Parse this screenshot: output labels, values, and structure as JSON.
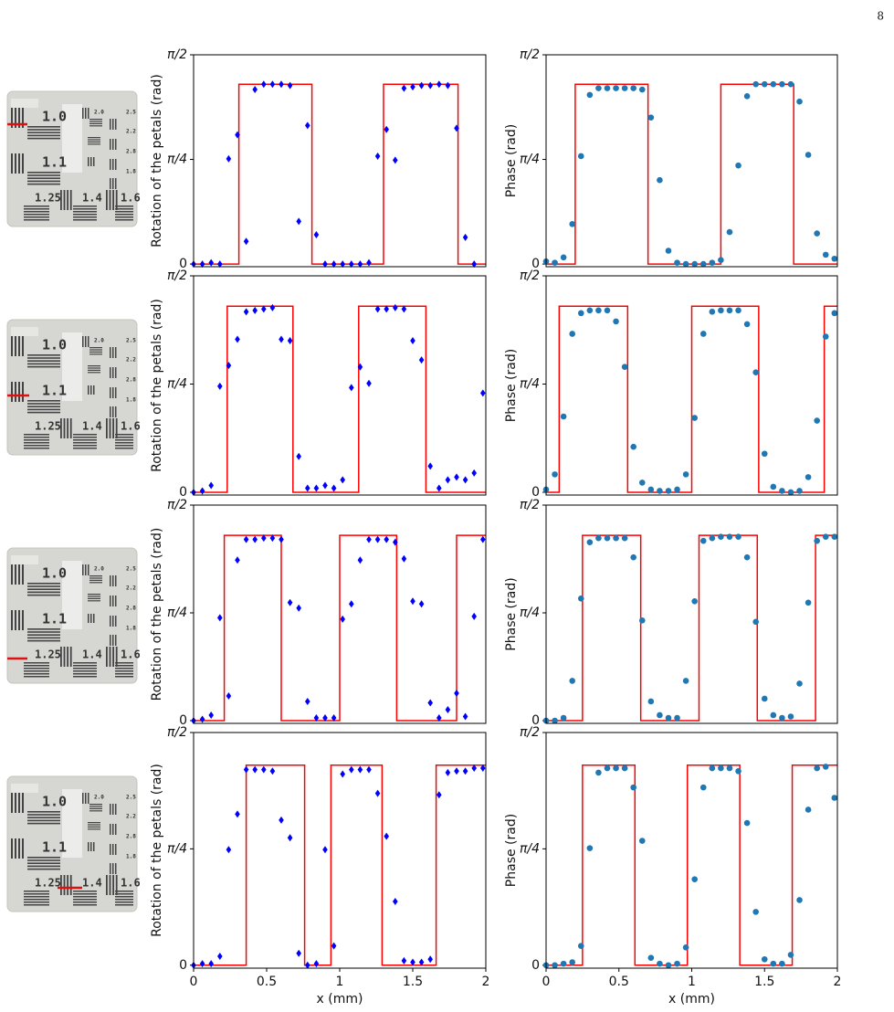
{
  "page_number": "8",
  "target_labels": [
    "1.0",
    "1.1",
    "1.25",
    "1.4",
    "1.6",
    "2.0",
    "2.5",
    "2.2",
    "2.8",
    "1.8"
  ],
  "chart_data": [
    {
      "type": "scatter",
      "ylabel": "Rotation of the petals (rad)",
      "xlim": [
        0,
        2
      ],
      "ylim": [
        -0.02,
        1.5708
      ],
      "yticks": [
        0,
        {
          "value": 0.7854,
          "label": "π/4"
        },
        {
          "value": 1.5708,
          "label": "π/2"
        }
      ],
      "step": {
        "color": "#ff0000",
        "x": [
          0,
          0.31,
          0.31,
          0.81,
          0.81,
          1.3,
          1.3,
          1.81,
          1.81,
          2
        ],
        "values": [
          0,
          0,
          1.35,
          1.35,
          0,
          0,
          1.35,
          1.35,
          0,
          0
        ]
      },
      "points": {
        "color": "#0000ff",
        "marker": "diamond",
        "x": [
          0,
          0.06,
          0.12,
          0.18,
          0.24,
          0.3,
          0.36,
          0.42,
          0.48,
          0.54,
          0.6,
          0.66,
          0.72,
          0.78,
          0.84,
          0.9,
          0.96,
          1.02,
          1.08,
          1.14,
          1.2,
          1.26,
          1.32,
          1.38,
          1.44,
          1.5,
          1.56,
          1.62,
          1.68,
          1.74,
          1.8,
          1.86,
          1.92
        ],
        "values": [
          0,
          0,
          0.01,
          0,
          0.79,
          0.97,
          0.17,
          1.31,
          1.35,
          1.35,
          1.35,
          1.34,
          0.32,
          1.04,
          0.22,
          0,
          0,
          0,
          0,
          0,
          0.01,
          0.81,
          1.01,
          0.78,
          1.32,
          1.33,
          1.34,
          1.34,
          1.35,
          1.34,
          1.02,
          0.2,
          0
        ]
      }
    },
    {
      "type": "scatter",
      "ylabel": "Phase (rad)",
      "xlim": [
        0,
        2
      ],
      "ylim": [
        -0.02,
        1.5708
      ],
      "yticks": [
        0,
        {
          "value": 0.7854,
          "label": "π/4"
        },
        {
          "value": 1.5708,
          "label": "π/2"
        }
      ],
      "step": {
        "color": "#ff0000",
        "x": [
          0,
          0.2,
          0.2,
          0.7,
          0.7,
          1.2,
          1.2,
          1.7,
          1.7,
          2
        ],
        "values": [
          0,
          0,
          1.35,
          1.35,
          0,
          0,
          1.35,
          1.35,
          0,
          0
        ]
      },
      "points": {
        "color": "#1f77b4",
        "marker": "circle",
        "x": [
          0,
          0.06,
          0.12,
          0.18,
          0.24,
          0.3,
          0.36,
          0.42,
          0.48,
          0.54,
          0.6,
          0.66,
          0.72,
          0.78,
          0.84,
          0.9,
          0.96,
          1.02,
          1.08,
          1.14,
          1.2,
          1.26,
          1.32,
          1.38,
          1.44,
          1.5,
          1.56,
          1.62,
          1.68,
          1.74,
          1.8,
          1.86,
          1.92,
          1.98
        ],
        "values": [
          0.02,
          0.01,
          0.05,
          0.3,
          0.81,
          1.27,
          1.32,
          1.32,
          1.32,
          1.32,
          1.32,
          1.31,
          1.1,
          0.63,
          0.1,
          0.01,
          0,
          0,
          0,
          0.01,
          0.03,
          0.24,
          0.74,
          1.26,
          1.35,
          1.35,
          1.35,
          1.35,
          1.35,
          1.22,
          0.82,
          0.23,
          0.07,
          0.04
        ]
      }
    },
    {
      "type": "scatter",
      "ylabel": "Rotation of the petals (rad)",
      "xlim": [
        0,
        2
      ],
      "ylim": [
        -0.02,
        1.5708
      ],
      "yticks": [
        0,
        {
          "value": 0.7854,
          "label": "π/4"
        },
        {
          "value": 1.5708,
          "label": "π/2"
        }
      ],
      "step": {
        "color": "#ff0000",
        "x": [
          0,
          0.23,
          0.23,
          0.68,
          0.68,
          1.13,
          1.13,
          1.59,
          1.59,
          2
        ],
        "values": [
          0,
          0,
          1.35,
          1.35,
          0,
          0,
          1.35,
          1.35,
          0,
          0
        ]
      },
      "points": {
        "color": "#0000ff",
        "marker": "diamond",
        "x": [
          0,
          0.06,
          0.12,
          0.18,
          0.24,
          0.3,
          0.36,
          0.42,
          0.48,
          0.54,
          0.6,
          0.66,
          0.72,
          0.78,
          0.84,
          0.9,
          0.96,
          1.02,
          1.08,
          1.14,
          1.2,
          1.26,
          1.32,
          1.38,
          1.44,
          1.5,
          1.56,
          1.62,
          1.68,
          1.74,
          1.8,
          1.86,
          1.92,
          1.98
        ],
        "values": [
          0,
          0.01,
          0.05,
          0.77,
          0.92,
          1.11,
          1.31,
          1.32,
          1.33,
          1.34,
          1.11,
          1.1,
          0.26,
          0.03,
          0.03,
          0.05,
          0.03,
          0.09,
          0.76,
          0.91,
          0.79,
          1.33,
          1.33,
          1.34,
          1.33,
          1.1,
          0.96,
          0.19,
          0.03,
          0.09,
          0.11,
          0.09,
          0.14,
          0.72
        ]
      }
    },
    {
      "type": "scatter",
      "ylabel": "Phase (rad)",
      "xlim": [
        0,
        2
      ],
      "ylim": [
        -0.02,
        1.5708
      ],
      "yticks": [
        0,
        {
          "value": 0.7854,
          "label": "π/4"
        },
        {
          "value": 1.5708,
          "label": "π/2"
        }
      ],
      "step": {
        "color": "#ff0000",
        "x": [
          0,
          0.09,
          0.09,
          0.56,
          0.56,
          1.0,
          1.0,
          1.46,
          1.46,
          1.91,
          1.91,
          2
        ],
        "values": [
          0,
          0,
          1.35,
          1.35,
          0,
          0,
          1.35,
          1.35,
          0,
          0,
          1.35,
          1.35
        ]
      },
      "points": {
        "color": "#1f77b4",
        "marker": "circle",
        "x": [
          0,
          0.06,
          0.12,
          0.18,
          0.24,
          0.3,
          0.36,
          0.42,
          0.48,
          0.54,
          0.6,
          0.66,
          0.72,
          0.78,
          0.84,
          0.9,
          0.96,
          1.02,
          1.08,
          1.14,
          1.2,
          1.26,
          1.32,
          1.38,
          1.44,
          1.5,
          1.56,
          1.62,
          1.68,
          1.74,
          1.8,
          1.86,
          1.92,
          1.98
        ],
        "values": [
          0.02,
          0.13,
          0.55,
          1.15,
          1.3,
          1.32,
          1.32,
          1.32,
          1.24,
          0.91,
          0.33,
          0.07,
          0.02,
          0.01,
          0.01,
          0.02,
          0.13,
          0.54,
          1.15,
          1.31,
          1.32,
          1.32,
          1.32,
          1.22,
          0.87,
          0.28,
          0.04,
          0.01,
          0,
          0.01,
          0.11,
          0.52,
          1.13,
          1.3
        ]
      }
    },
    {
      "type": "scatter",
      "ylabel": "Rotation of the petals (rad)",
      "xlim": [
        0,
        2
      ],
      "ylim": [
        -0.02,
        1.5708
      ],
      "yticks": [
        0,
        {
          "value": 0.7854,
          "label": "π/4"
        },
        {
          "value": 1.5708,
          "label": "π/2"
        }
      ],
      "step": {
        "color": "#ff0000",
        "x": [
          0,
          0.21,
          0.21,
          0.6,
          0.6,
          1.0,
          1.0,
          1.39,
          1.39,
          1.8,
          1.8,
          2
        ],
        "values": [
          0,
          0,
          1.35,
          1.35,
          0,
          0,
          1.35,
          1.35,
          0,
          0,
          1.35,
          1.35
        ]
      },
      "points": {
        "color": "#0000ff",
        "marker": "diamond",
        "x": [
          0,
          0.06,
          0.12,
          0.18,
          0.24,
          0.3,
          0.36,
          0.42,
          0.48,
          0.54,
          0.6,
          0.66,
          0.72,
          0.78,
          0.84,
          0.9,
          0.96,
          1.02,
          1.08,
          1.14,
          1.2,
          1.26,
          1.32,
          1.38,
          1.44,
          1.5,
          1.56,
          1.62,
          1.68,
          1.74,
          1.8,
          1.86,
          1.92,
          1.98
        ],
        "values": [
          0,
          0.01,
          0.04,
          0.75,
          0.18,
          1.17,
          1.32,
          1.32,
          1.33,
          1.33,
          1.32,
          0.86,
          0.82,
          0.14,
          0.02,
          0.02,
          0.02,
          0.74,
          0.85,
          1.17,
          1.32,
          1.32,
          1.32,
          1.3,
          1.18,
          0.87,
          0.85,
          0.13,
          0.02,
          0.08,
          0.2,
          0.03,
          0.76,
          1.32
        ]
      }
    },
    {
      "type": "scatter",
      "ylabel": "Phase (rad)",
      "xlim": [
        0,
        2
      ],
      "ylim": [
        -0.02,
        1.5708
      ],
      "yticks": [
        0,
        {
          "value": 0.7854,
          "label": "π/4"
        },
        {
          "value": 1.5708,
          "label": "π/2"
        }
      ],
      "step": {
        "color": "#ff0000",
        "x": [
          0,
          0.25,
          0.25,
          0.65,
          0.65,
          1.05,
          1.05,
          1.45,
          1.45,
          1.85,
          1.85,
          2
        ],
        "values": [
          0,
          0,
          1.35,
          1.35,
          0,
          0,
          1.35,
          1.35,
          0,
          0,
          1.35,
          1.35
        ]
      },
      "points": {
        "color": "#1f77b4",
        "marker": "circle",
        "x": [
          0,
          0.06,
          0.12,
          0.18,
          0.24,
          0.3,
          0.36,
          0.42,
          0.48,
          0.54,
          0.6,
          0.66,
          0.72,
          0.78,
          0.84,
          0.9,
          0.96,
          1.02,
          1.08,
          1.14,
          1.2,
          1.26,
          1.32,
          1.38,
          1.44,
          1.5,
          1.56,
          1.62,
          1.68,
          1.74,
          1.8,
          1.86,
          1.92,
          1.98
        ],
        "values": [
          0,
          0,
          0.02,
          0.29,
          0.89,
          1.3,
          1.33,
          1.33,
          1.33,
          1.33,
          1.19,
          0.73,
          0.14,
          0.04,
          0.02,
          0.02,
          0.29,
          0.87,
          1.31,
          1.33,
          1.34,
          1.34,
          1.34,
          1.19,
          0.72,
          0.16,
          0.04,
          0.02,
          0.03,
          0.27,
          0.86,
          1.31,
          1.34,
          1.34
        ]
      }
    },
    {
      "type": "scatter",
      "ylabel": "Rotation of the petals (rad)",
      "xlabel": "x (mm)",
      "xlim": [
        0,
        2
      ],
      "xticks": [
        0,
        0.5,
        1,
        1.5,
        2
      ],
      "ylim": [
        -0.02,
        1.5708
      ],
      "yticks": [
        0,
        {
          "value": 0.7854,
          "label": "π/4"
        },
        {
          "value": 1.5708,
          "label": "π/2"
        }
      ],
      "step": {
        "color": "#ff0000",
        "x": [
          0,
          0.36,
          0.36,
          0.76,
          0.76,
          0.94,
          0.94,
          1.29,
          1.29,
          1.66,
          1.66,
          2
        ],
        "values": [
          0,
          0,
          1.35,
          1.35,
          0,
          0,
          1.35,
          1.35,
          0,
          0,
          1.35,
          1.35
        ]
      },
      "points": {
        "color": "#0000ff",
        "marker": "diamond",
        "x": [
          0,
          0.06,
          0.12,
          0.18,
          0.24,
          0.3,
          0.36,
          0.42,
          0.48,
          0.54,
          0.6,
          0.66,
          0.72,
          0.78,
          0.84,
          0.9,
          0.96,
          1.02,
          1.08,
          1.14,
          1.2,
          1.26,
          1.32,
          1.38,
          1.44,
          1.5,
          1.56,
          1.62,
          1.68,
          1.74,
          1.8,
          1.86,
          1.92,
          1.98
        ],
        "values": [
          0,
          0.01,
          0.01,
          0.06,
          0.78,
          1.02,
          1.32,
          1.32,
          1.32,
          1.31,
          0.98,
          0.86,
          0.08,
          0,
          0.01,
          0.78,
          0.13,
          1.29,
          1.32,
          1.32,
          1.32,
          1.16,
          0.87,
          0.43,
          0.03,
          0.02,
          0.02,
          0.04,
          1.15,
          1.3,
          1.31,
          1.31,
          1.33,
          1.33
        ]
      }
    },
    {
      "type": "scatter",
      "ylabel": "Phase (rad)",
      "xlabel": "x (mm)",
      "xlim": [
        0,
        2
      ],
      "xticks": [
        0,
        0.5,
        1,
        1.5,
        2
      ],
      "ylim": [
        -0.02,
        1.5708
      ],
      "yticks": [
        0,
        {
          "value": 0.7854,
          "label": "π/4"
        },
        {
          "value": 1.5708,
          "label": "π/2"
        }
      ],
      "step": {
        "color": "#ff0000",
        "x": [
          0,
          0.25,
          0.25,
          0.61,
          0.61,
          0.97,
          0.97,
          1.33,
          1.33,
          1.69,
          1.69,
          2
        ],
        "values": [
          0,
          0,
          1.35,
          1.35,
          0,
          0,
          1.35,
          1.35,
          0,
          0,
          1.35,
          1.35
        ]
      },
      "points": {
        "color": "#1f77b4",
        "marker": "circle",
        "x": [
          0,
          0.06,
          0.12,
          0.18,
          0.24,
          0.3,
          0.36,
          0.42,
          0.48,
          0.54,
          0.6,
          0.66,
          0.72,
          0.78,
          0.84,
          0.9,
          0.96,
          1.02,
          1.08,
          1.14,
          1.2,
          1.26,
          1.32,
          1.38,
          1.44,
          1.5,
          1.56,
          1.62,
          1.68,
          1.74,
          1.8,
          1.86,
          1.92,
          1.98
        ],
        "values": [
          0,
          0,
          0.01,
          0.02,
          0.13,
          0.79,
          1.3,
          1.33,
          1.33,
          1.33,
          1.2,
          0.84,
          0.05,
          0.01,
          0,
          0.01,
          0.12,
          0.58,
          1.2,
          1.33,
          1.33,
          1.33,
          1.31,
          0.96,
          0.36,
          0.04,
          0.01,
          0.01,
          0.07,
          0.44,
          1.05,
          1.33,
          1.34,
          1.13
        ]
      }
    }
  ]
}
